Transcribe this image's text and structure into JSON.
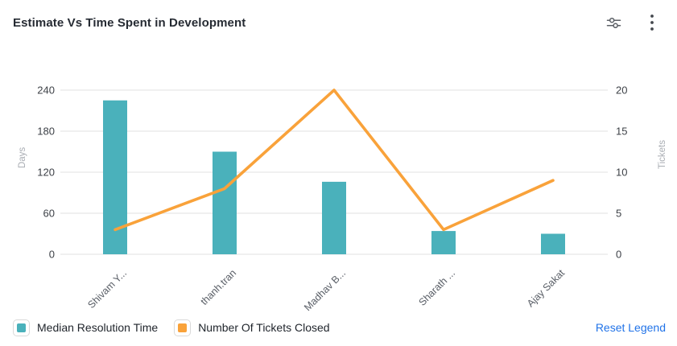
{
  "header": {
    "title": "Estimate Vs Time Spent in Development",
    "icons": [
      "sliders-filter-icon",
      "kebab-menu-icon"
    ]
  },
  "chart_data": {
    "type": "bar+line combo",
    "categories": [
      "Shivam Y...",
      "thanh.tran",
      "Madhav B...",
      "Sharath ...",
      "Ajay Sakat"
    ],
    "series": [
      {
        "name": "Median Resolution Time",
        "type": "bar",
        "axis": "left",
        "color": "#4ab1bb",
        "values": [
          225,
          150,
          106,
          34,
          30
        ]
      },
      {
        "name": "Number Of Tickets Closed",
        "type": "line",
        "axis": "right",
        "color": "#f9a23a",
        "values": [
          3,
          8,
          20,
          3,
          9
        ]
      }
    ],
    "left_axis": {
      "label": "Days",
      "ticks": [
        0,
        60,
        120,
        180,
        240
      ],
      "range": [
        0,
        240
      ]
    },
    "right_axis": {
      "label": "Tickets",
      "ticks": [
        0,
        5,
        10,
        15,
        20
      ],
      "range": [
        0,
        20
      ]
    },
    "grid": true,
    "legend_position": "bottom",
    "colors": {
      "gridline": "#ececec",
      "tick_label": "#3d4147",
      "axis_name": "#a9adb3",
      "category_label": "#595e66"
    }
  },
  "legend": {
    "items": [
      {
        "label": "Median Resolution Time",
        "color": "#4ab1bb"
      },
      {
        "label": "Number Of Tickets Closed",
        "color": "#f9a23a"
      }
    ],
    "reset_label": "Reset Legend",
    "reset_color": "#2173e8"
  }
}
